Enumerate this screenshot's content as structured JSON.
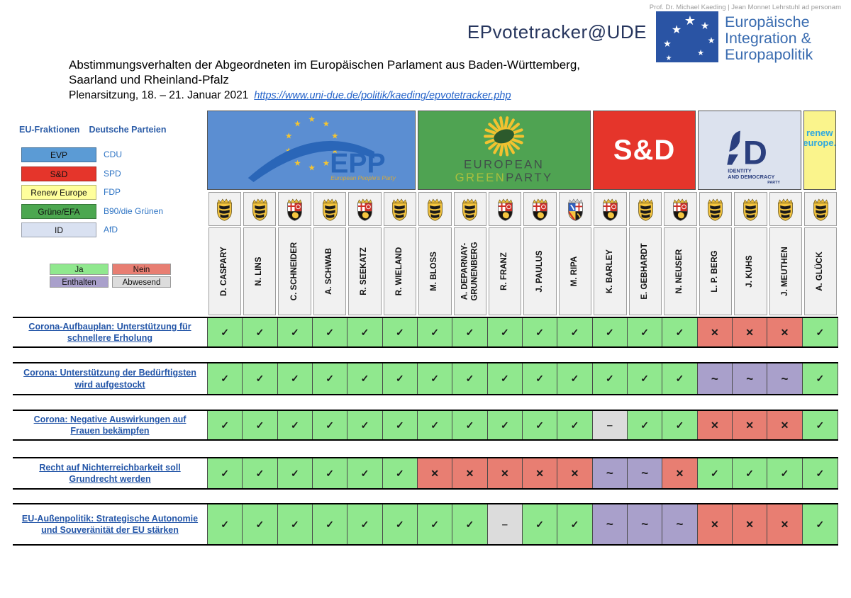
{
  "masthead": {
    "chair_line": "Prof. Dr. Michael Kaeding | Jean Monnet Lehrstuhl ad personam",
    "brand": "EPvotetracker@UDE",
    "institute": [
      "Europäische",
      "Integration &",
      "Europapolitik"
    ]
  },
  "title": {
    "line1": "Abstimmungsverhalten der Abgeordneten im Europäischen Parlament aus Baden-Württemberg,",
    "line2": "Saarland und Rheinland-Pfalz",
    "session": "Plenarsitzung, 18. – 21. Januar 2021",
    "link": "https://www.uni-due.de/politik/kaeding/epvotetracker.php"
  },
  "legend": {
    "col1_header": "EU-Fraktionen",
    "col2_header": "Deutsche Parteien",
    "fractions": [
      {
        "label": "EVP",
        "party": "CDU",
        "color": "#5B9BD5"
      },
      {
        "label": "S&D",
        "party": "SPD",
        "color": "#E5352B"
      },
      {
        "label": "Renew Europe",
        "party": "FDP",
        "color": "#FFFF9C"
      },
      {
        "label": "Grüne/EFA",
        "party": "B90/die Grünen",
        "color": "#4CA750"
      },
      {
        "label": "ID",
        "party": "AfD",
        "color": "#D9E1F1"
      }
    ],
    "vote_keys": [
      {
        "label": "Ja",
        "color": "#90E88E"
      },
      {
        "label": "Nein",
        "color": "#E87E72"
      },
      {
        "label": "Enthalten",
        "color": "#A9A0CB"
      },
      {
        "label": "Abwesend",
        "color": "#DCDCDC"
      }
    ]
  },
  "table": {
    "groups": [
      {
        "id": "epp",
        "color": "#5B8ED2",
        "seats": 6,
        "logo": {
          "text": "EPP",
          "sub": "European People's Party"
        }
      },
      {
        "id": "greens",
        "color": "#4FA352",
        "seats": 5,
        "logo": {
          "line1": "EUROPEAN",
          "green": "GREEN",
          "party": "PARTY"
        }
      },
      {
        "id": "sd",
        "color": "#E5352B",
        "seats": 3,
        "logo": {
          "text": "S&D"
        }
      },
      {
        "id": "idparty",
        "color": "#DCE2EE",
        "seats": 3,
        "logo": {
          "line1": "IDENTITY",
          "line2": "AND DEMOCRACY",
          "sub": "PARTY"
        }
      },
      {
        "id": "renew",
        "color": "#FAF48C",
        "seats": 1,
        "logo": {
          "line1": "renew",
          "line2": "europe."
        }
      }
    ],
    "members": [
      {
        "name": "D. CASPARY",
        "arms": "bw"
      },
      {
        "name": "N. LINS",
        "arms": "bw"
      },
      {
        "name": "C. SCHNEIDER",
        "arms": "rp"
      },
      {
        "name": "A. SCHWAB",
        "arms": "bw"
      },
      {
        "name": "R. SEEKATZ",
        "arms": "rp"
      },
      {
        "name": "R. WIELAND",
        "arms": "bw"
      },
      {
        "name": "M. BLOSS",
        "arms": "bw"
      },
      {
        "name": "A. DEPARNAY-GRUNENBERG",
        "arms": "bw"
      },
      {
        "name": "R. FRANZ",
        "arms": "rp"
      },
      {
        "name": "J. PAULUS",
        "arms": "rp"
      },
      {
        "name": "M. RIPA",
        "arms": "sl"
      },
      {
        "name": "K. BARLEY",
        "arms": "rp"
      },
      {
        "name": "E. GEBHARDT",
        "arms": "bw"
      },
      {
        "name": "N. NEUSER",
        "arms": "rp"
      },
      {
        "name": "L. P. BERG",
        "arms": "bw"
      },
      {
        "name": "J. KUHS",
        "arms": "bw"
      },
      {
        "name": "J. MEUTHEN",
        "arms": "bw"
      },
      {
        "name": "A. GLÜCK",
        "arms": "bw"
      }
    ],
    "symbols": {
      "ja": "✓",
      "nein": "✕",
      "enthalten": "~",
      "abwesend": "–"
    },
    "votes": [
      {
        "label": "Corona-Aufbauplan: Unterstützung für schnellere Erholung",
        "results": [
          "ja",
          "ja",
          "ja",
          "ja",
          "ja",
          "ja",
          "ja",
          "ja",
          "ja",
          "ja",
          "ja",
          "ja",
          "ja",
          "ja",
          "nein",
          "nein",
          "nein",
          "ja"
        ]
      },
      {
        "label": "Corona: Unterstützung der Bedürftigsten wird aufgestockt",
        "results": [
          "ja",
          "ja",
          "ja",
          "ja",
          "ja",
          "ja",
          "ja",
          "ja",
          "ja",
          "ja",
          "ja",
          "ja",
          "ja",
          "ja",
          "enthalten",
          "enthalten",
          "enthalten",
          "ja"
        ]
      },
      {
        "label": "Corona: Negative Auswirkungen auf Frauen bekämpfen",
        "results": [
          "ja",
          "ja",
          "ja",
          "ja",
          "ja",
          "ja",
          "ja",
          "ja",
          "ja",
          "ja",
          "ja",
          "abwesend",
          "ja",
          "ja",
          "nein",
          "nein",
          "nein",
          "ja"
        ]
      },
      {
        "label": "Recht auf Nichterreichbarkeit soll Grundrecht werden",
        "results": [
          "ja",
          "ja",
          "ja",
          "ja",
          "ja",
          "ja",
          "nein",
          "nein",
          "nein",
          "nein",
          "nein",
          "enthalten",
          "enthalten",
          "nein",
          "ja",
          "ja",
          "ja",
          "ja"
        ]
      },
      {
        "label": "EU-Außenpolitik: Strategische Autonomie und Souveränität der EU stärken",
        "results": [
          "ja",
          "ja",
          "ja",
          "ja",
          "ja",
          "ja",
          "ja",
          "ja",
          "abwesend",
          "ja",
          "ja",
          "enthalten",
          "enthalten",
          "enthalten",
          "nein",
          "nein",
          "nein",
          "ja"
        ]
      }
    ]
  }
}
